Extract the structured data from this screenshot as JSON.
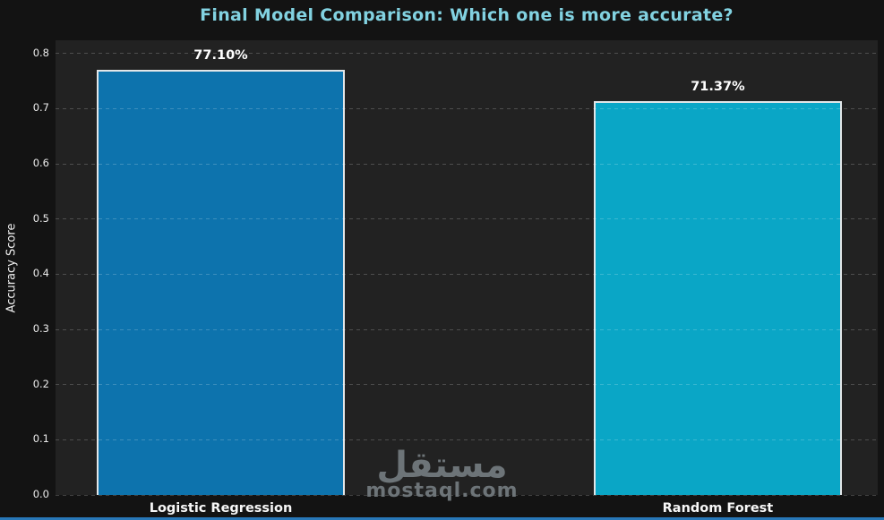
{
  "title": "Final Model Comparison: Which one is more accurate?",
  "watermark": {
    "logo_text": "مستقل",
    "site_text": "mostaql.com"
  },
  "chart_data": {
    "type": "bar",
    "title": "Final Model Comparison: Which one is more accurate?",
    "xlabel": "",
    "ylabel": "Accuracy Score",
    "categories": [
      "Logistic Regression",
      "Random Forest"
    ],
    "values": [
      0.771,
      0.7137
    ],
    "value_labels": [
      "77.10%",
      "71.37%"
    ],
    "ytick_labels": [
      "0.0",
      "0.1",
      "0.2",
      "0.3",
      "0.4",
      "0.5",
      "0.6",
      "0.7",
      "0.8"
    ],
    "ylim": [
      0,
      0.824
    ],
    "grid": "horizontal dashed",
    "legend": "none",
    "bar_colors": [
      "#0d73ad",
      "#0aa6c6"
    ],
    "bar_edge_color": "#e2e6e8",
    "colors": {
      "figure_background": "#131313",
      "plot_background": "#222222",
      "title": "#82d2e1",
      "tick_labels": "#ebebeb",
      "value_labels": "#ffffff",
      "watermark": "#6d7478",
      "bottom_accent": "#2878b8"
    }
  }
}
